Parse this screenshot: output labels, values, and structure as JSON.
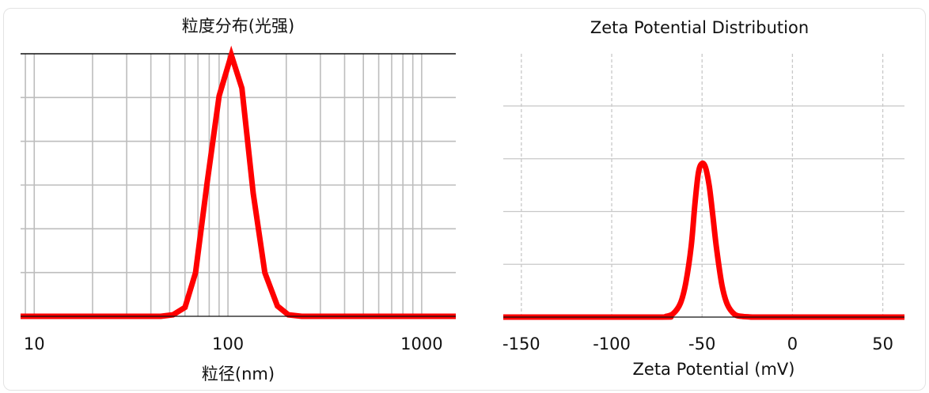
{
  "chart_data": [
    {
      "type": "line",
      "title": "粒度分布(光强)",
      "xlabel": "粒径(nm)",
      "ylabel": "",
      "xscale": "log",
      "xlim": [
        8.5,
        1500
      ],
      "ylim": [
        0,
        100
      ],
      "xticks": [
        10,
        100,
        1000
      ],
      "xtick_labels": [
        "10",
        "100",
        "1000"
      ],
      "grid": true,
      "grid_style": "solid",
      "color": "#ff0000",
      "series": [
        {
          "x": [
            8.5,
            30,
            45,
            52,
            60,
            68,
            78,
            90,
            104,
            118,
            135,
            155,
            180,
            205,
            240,
            300,
            500,
            1500
          ],
          "y": [
            0,
            0,
            0,
            0.6,
            3.5,
            17,
            52,
            86,
            102,
            89,
            48,
            17,
            4,
            0.6,
            0,
            0,
            0,
            0
          ]
        }
      ]
    },
    {
      "type": "line",
      "title": "Zeta Potential Distribution",
      "xlabel": "Zeta Potential (mV)",
      "ylabel": "",
      "xlim": [
        -160,
        62
      ],
      "ylim": [
        0,
        100
      ],
      "xticks": [
        -150,
        -100,
        -50,
        0,
        50
      ],
      "xtick_labels": [
        "-150",
        "-100",
        "-50",
        "0",
        "50"
      ],
      "grid": true,
      "grid_style": "dashed",
      "color": "#ff0000",
      "series": [
        {
          "x": [
            -160,
            -75,
            -70,
            -66,
            -62,
            -59,
            -56,
            -54,
            -52,
            -50,
            -48,
            -46,
            -44,
            -42,
            -39,
            -36,
            -32,
            -28,
            -24,
            -20,
            0,
            62
          ],
          "y": [
            0,
            0,
            0.3,
            1.5,
            6,
            15,
            31,
            49,
            63,
            67,
            65,
            57,
            44,
            30,
            14,
            5.5,
            1.2,
            0.3,
            0.1,
            0,
            0,
            0
          ]
        }
      ]
    }
  ]
}
